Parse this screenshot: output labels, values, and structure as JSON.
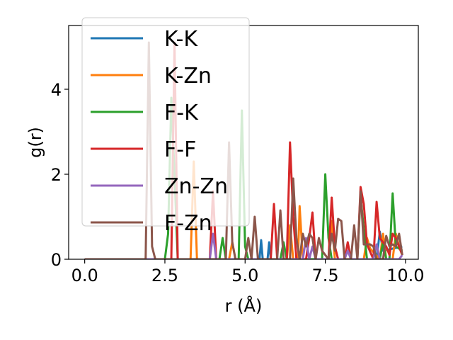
{
  "chart_data": {
    "type": "line",
    "xlabel": "r (Å)",
    "ylabel": "g(r)",
    "xlim": [
      -0.5,
      10.4
    ],
    "ylim": [
      0,
      5.5
    ],
    "xticks": [
      0.0,
      2.5,
      5.0,
      7.5,
      10.0
    ],
    "xtick_labels": [
      "0.0",
      "2.5",
      "5.0",
      "7.5",
      "10.0"
    ],
    "yticks": [
      0,
      2,
      4
    ],
    "ytick_labels": [
      "0",
      "2",
      "4"
    ],
    "legend_position": "upper-left",
    "grid": false,
    "series": [
      {
        "name": "K-K",
        "color": "#1f77b4",
        "points": [
          [
            0,
            0
          ],
          [
            5.45,
            0
          ],
          [
            5.5,
            0.45
          ],
          [
            5.55,
            0
          ],
          [
            5.7,
            0
          ],
          [
            5.75,
            0.4
          ],
          [
            5.8,
            0
          ],
          [
            9.1,
            0
          ],
          [
            9.2,
            0.65
          ],
          [
            9.3,
            0.2
          ],
          [
            9.9,
            0.3
          ]
        ]
      },
      {
        "name": "K-Zn",
        "color": "#ff7f0e",
        "points": [
          [
            0,
            0
          ],
          [
            3.3,
            0
          ],
          [
            3.4,
            2.3
          ],
          [
            3.5,
            0
          ],
          [
            4.5,
            0
          ],
          [
            4.6,
            0.4
          ],
          [
            4.7,
            0
          ],
          [
            6.3,
            0
          ],
          [
            6.4,
            0.8
          ],
          [
            6.5,
            0
          ],
          [
            6.65,
            0
          ],
          [
            6.7,
            1.25
          ],
          [
            6.8,
            0
          ],
          [
            7.6,
            0
          ],
          [
            7.7,
            0.9
          ],
          [
            7.8,
            0
          ],
          [
            8.7,
            0
          ],
          [
            8.8,
            0.5
          ],
          [
            8.9,
            0.25
          ],
          [
            9.2,
            0
          ],
          [
            9.3,
            0.6
          ],
          [
            9.4,
            0
          ],
          [
            9.6,
            0
          ],
          [
            9.7,
            0.6
          ],
          [
            9.8,
            0.3
          ],
          [
            9.9,
            0.1
          ]
        ]
      },
      {
        "name": "F-K",
        "color": "#2ca02c",
        "points": [
          [
            0,
            0
          ],
          [
            2.5,
            0
          ],
          [
            2.6,
            0.6
          ],
          [
            2.7,
            3.8
          ],
          [
            2.8,
            2.0
          ],
          [
            2.9,
            0
          ],
          [
            4.2,
            0
          ],
          [
            4.3,
            0.5
          ],
          [
            4.4,
            0
          ],
          [
            4.8,
            0
          ],
          [
            4.9,
            3.5
          ],
          [
            5.0,
            0.3
          ],
          [
            5.1,
            0
          ],
          [
            6.1,
            0
          ],
          [
            6.2,
            0.4
          ],
          [
            6.3,
            0
          ],
          [
            7.4,
            0
          ],
          [
            7.5,
            2.0
          ],
          [
            7.6,
            0.5
          ],
          [
            7.7,
            0
          ],
          [
            8.5,
            0
          ],
          [
            8.6,
            1.5
          ],
          [
            8.7,
            0.7
          ],
          [
            8.8,
            0
          ],
          [
            9.2,
            0
          ],
          [
            9.3,
            0.4
          ],
          [
            9.4,
            0
          ],
          [
            9.5,
            0
          ],
          [
            9.6,
            1.55
          ],
          [
            9.7,
            0.3
          ],
          [
            9.9,
            0.2
          ]
        ]
      },
      {
        "name": "F-F",
        "color": "#d62728",
        "points": [
          [
            0,
            0
          ],
          [
            2.7,
            0
          ],
          [
            2.8,
            5.1
          ],
          [
            2.9,
            0
          ],
          [
            3.9,
            0
          ],
          [
            4.0,
            1.6
          ],
          [
            4.1,
            0
          ],
          [
            5.8,
            0
          ],
          [
            5.9,
            1.3
          ],
          [
            6.0,
            0
          ],
          [
            6.3,
            0
          ],
          [
            6.4,
            2.75
          ],
          [
            6.5,
            1.0
          ],
          [
            6.6,
            0
          ],
          [
            6.9,
            0
          ],
          [
            7.0,
            0.5
          ],
          [
            7.1,
            1.1
          ],
          [
            7.2,
            0
          ],
          [
            7.6,
            0
          ],
          [
            7.7,
            1.45
          ],
          [
            7.8,
            0.3
          ],
          [
            7.9,
            0
          ],
          [
            8.1,
            0
          ],
          [
            8.2,
            0.4
          ],
          [
            8.3,
            0
          ],
          [
            8.5,
            0
          ],
          [
            8.6,
            1.7
          ],
          [
            8.7,
            1.3
          ],
          [
            8.8,
            0.35
          ],
          [
            9.0,
            0
          ],
          [
            9.1,
            1.35
          ],
          [
            9.2,
            0.5
          ],
          [
            9.4,
            0.3
          ],
          [
            9.5,
            0.1
          ],
          [
            9.6,
            0.6
          ],
          [
            9.7,
            0.5
          ],
          [
            9.9,
            0.1
          ]
        ]
      },
      {
        "name": "Zn-Zn",
        "color": "#9467bd",
        "points": [
          [
            0,
            0
          ],
          [
            3.9,
            0
          ],
          [
            4.0,
            0.6
          ],
          [
            4.1,
            0
          ],
          [
            6.8,
            0
          ],
          [
            6.9,
            0.5
          ],
          [
            7.0,
            0
          ],
          [
            7.1,
            0.3
          ],
          [
            7.2,
            0
          ],
          [
            8.1,
            0
          ],
          [
            8.2,
            0.2
          ],
          [
            8.3,
            0
          ],
          [
            9.0,
            0
          ],
          [
            9.1,
            0.35
          ],
          [
            9.2,
            0
          ],
          [
            9.8,
            0
          ],
          [
            9.9,
            0.1
          ]
        ]
      },
      {
        "name": "F-Zn",
        "color": "#8c564b",
        "points": [
          [
            0,
            0
          ],
          [
            1.9,
            0
          ],
          [
            2.0,
            5.1
          ],
          [
            2.1,
            0.3
          ],
          [
            2.2,
            0
          ],
          [
            4.4,
            0
          ],
          [
            4.5,
            2.75
          ],
          [
            4.6,
            0.4
          ],
          [
            4.7,
            0
          ],
          [
            5.0,
            0
          ],
          [
            5.1,
            0.5
          ],
          [
            5.2,
            0
          ],
          [
            5.3,
            1.0
          ],
          [
            5.4,
            0
          ],
          [
            6.0,
            0
          ],
          [
            6.1,
            1.15
          ],
          [
            6.2,
            0
          ],
          [
            6.4,
            0
          ],
          [
            6.5,
            1.9
          ],
          [
            6.6,
            0.5
          ],
          [
            6.7,
            0
          ],
          [
            6.8,
            0.6
          ],
          [
            6.9,
            0.3
          ],
          [
            7.0,
            0.6
          ],
          [
            7.1,
            0.5
          ],
          [
            7.2,
            0
          ],
          [
            7.3,
            0.5
          ],
          [
            7.4,
            0.2
          ],
          [
            7.6,
            0
          ],
          [
            7.7,
            0.6
          ],
          [
            7.8,
            0.2
          ],
          [
            7.9,
            0.95
          ],
          [
            8.0,
            0.9
          ],
          [
            8.1,
            0
          ],
          [
            8.3,
            0
          ],
          [
            8.4,
            0.8
          ],
          [
            8.5,
            0
          ],
          [
            8.6,
            1.6
          ],
          [
            8.7,
            0.35
          ],
          [
            8.8,
            0.35
          ],
          [
            8.9,
            0.35
          ],
          [
            9.0,
            0.3
          ],
          [
            9.1,
            0
          ],
          [
            9.3,
            0
          ],
          [
            9.4,
            0.55
          ],
          [
            9.5,
            0.3
          ],
          [
            9.6,
            0.35
          ],
          [
            9.7,
            0.3
          ],
          [
            9.8,
            0.6
          ],
          [
            9.9,
            0.1
          ]
        ]
      }
    ]
  }
}
